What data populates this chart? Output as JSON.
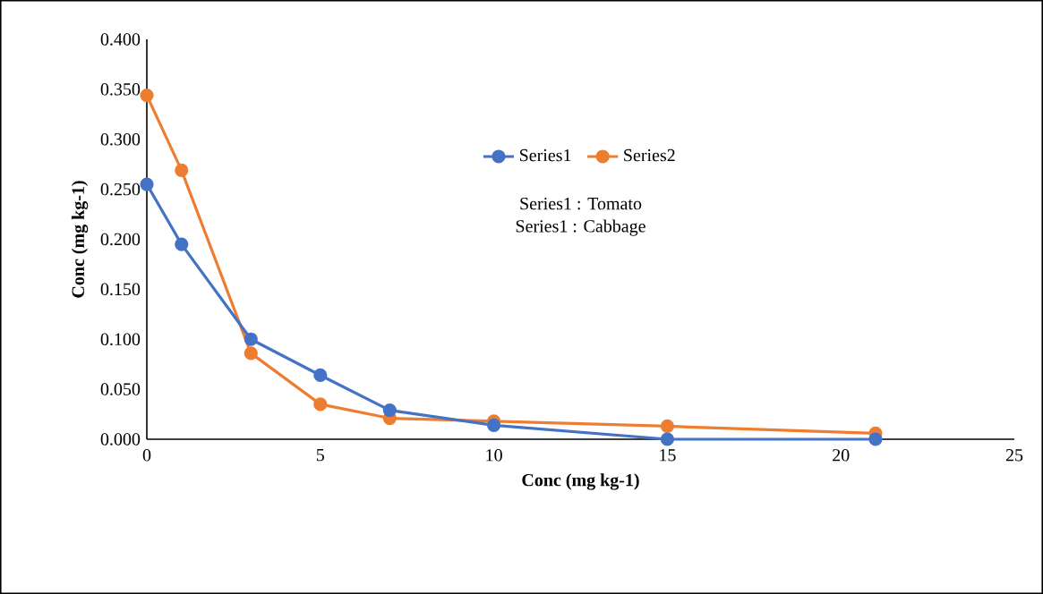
{
  "chart_data": {
    "type": "line",
    "xlabel": "Conc (mg kg-1)",
    "ylabel": "Conc (mg kg-1)",
    "x": [
      0,
      1,
      3,
      5,
      7,
      10,
      15,
      21
    ],
    "series": [
      {
        "name": "Series1",
        "color": "#4472c4",
        "values": [
          0.255,
          0.195,
          0.1,
          0.064,
          0.029,
          0.014,
          0.0,
          0.0
        ]
      },
      {
        "name": "Series2",
        "color": "#ed7d31",
        "values": [
          0.344,
          0.269,
          0.086,
          0.035,
          0.021,
          0.018,
          0.013,
          0.006
        ]
      }
    ],
    "xlim": [
      0,
      25
    ],
    "ylim": [
      0,
      0.4
    ],
    "xticks": [
      0,
      5,
      10,
      15,
      20,
      25
    ],
    "yticks": [
      {
        "value": 0,
        "label": "0.000"
      },
      {
        "value": 0.05,
        "label": "0.050"
      },
      {
        "value": 0.1,
        "label": "0.100"
      },
      {
        "value": 0.15,
        "label": "0.150"
      },
      {
        "value": 0.2,
        "label": "0.200"
      },
      {
        "value": 0.25,
        "label": "0.250"
      },
      {
        "value": 0.3,
        "label": "0.300"
      },
      {
        "value": 0.35,
        "label": "0.350"
      },
      {
        "value": 0.4,
        "label": "0.400"
      }
    ],
    "annotations": [
      "Series1 : Tomato",
      "Series1 : Cabbage"
    ],
    "legend": "top",
    "marker": "circle",
    "line_style": "solid",
    "grid": false
  }
}
